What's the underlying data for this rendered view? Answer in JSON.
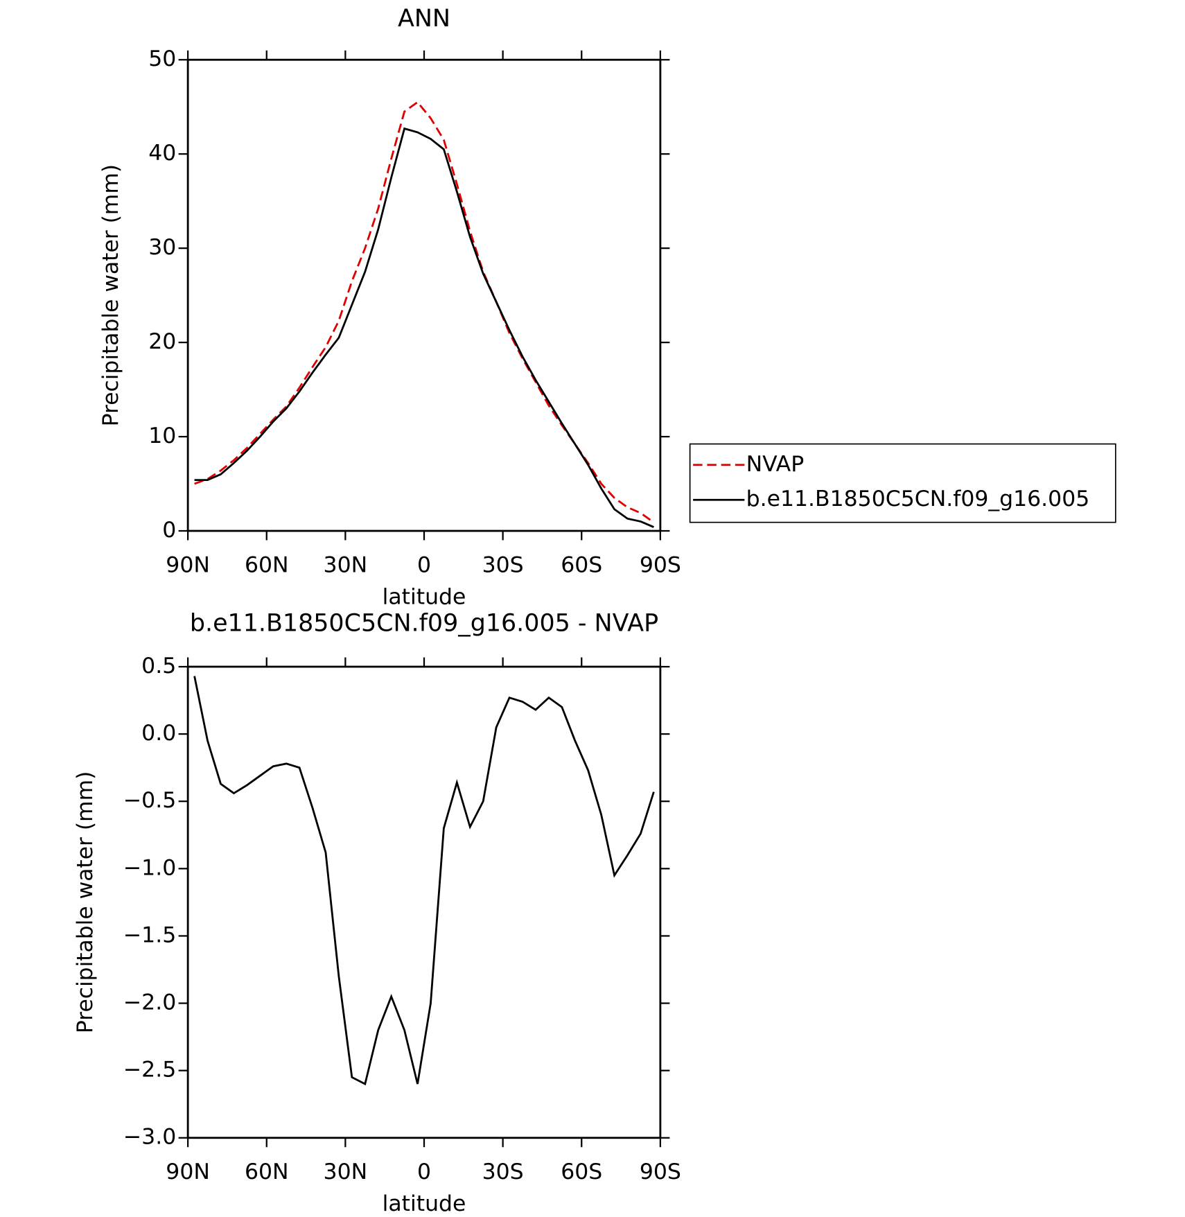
{
  "chart_data": [
    {
      "type": "line",
      "title": "ANN",
      "x_label": "latitude",
      "y_label": "Precipitable water (mm)",
      "x": [
        87.5,
        82.5,
        77.5,
        72.5,
        67.5,
        62.5,
        57.5,
        52.5,
        47.5,
        42.5,
        37.5,
        32.5,
        27.5,
        22.5,
        17.5,
        12.5,
        7.5,
        2.5,
        -2.5,
        -7.5,
        -12.5,
        -17.5,
        -22.5,
        -27.5,
        -32.5,
        -37.5,
        -42.5,
        -47.5,
        -52.5,
        -57.5,
        -62.5,
        -67.5,
        -72.5,
        -77.5,
        -82.5,
        -87.5
      ],
      "series": [
        {
          "name": "NVAP",
          "color": "#e00000",
          "dashed": true,
          "values": [
            5.0,
            5.5,
            6.4,
            7.5,
            8.8,
            10.3,
            11.8,
            13.2,
            15.2,
            17.4,
            19.5,
            22.3,
            26.5,
            30,
            34.2,
            39.5,
            44.5,
            45.5,
            43.8,
            41.5,
            36.8,
            31.8,
            27.5,
            24.3,
            21,
            18.3,
            15.8,
            13.3,
            11.2,
            9.2,
            7.2,
            5.0,
            3.5,
            2.5,
            1.9,
            0.9
          ]
        },
        {
          "name": "b.e11.B1850C5CN.f09_g16.005",
          "color": "#000000",
          "dashed": false,
          "values": [
            5.4,
            5.4,
            6.0,
            7.2,
            8.5,
            10.0,
            11.6,
            13.0,
            14.8,
            16.8,
            18.7,
            20.5,
            24,
            27.5,
            32,
            37.5,
            42.7,
            42.3,
            41.6,
            40.5,
            36,
            31.2,
            27.3,
            24.3,
            21.3,
            18.5,
            16,
            13.7,
            11.4,
            9.2,
            7.0,
            4.5,
            2.3,
            1.3,
            1.0,
            0.4
          ]
        }
      ],
      "xlim": [
        90,
        -90
      ],
      "xticks": [
        {
          "value": 90,
          "label": "90N"
        },
        {
          "value": 60,
          "label": "60N"
        },
        {
          "value": 30,
          "label": "30N"
        },
        0,
        {
          "value": -30,
          "label": "30S"
        },
        {
          "value": -60,
          "label": "60S"
        },
        {
          "value": -90,
          "label": "90S"
        }
      ],
      "ylim": [
        0,
        50
      ],
      "yticks": [
        0,
        10,
        20,
        30,
        40,
        50
      ],
      "grid": false,
      "legend": "outside-right"
    },
    {
      "type": "line",
      "title": "b.e11.B1850C5CN.f09_g16.005 - NVAP",
      "x_label": "latitude",
      "y_label": "Precipitable water (mm)",
      "x": [
        87.5,
        82.5,
        77.5,
        72.5,
        67.5,
        62.5,
        57.5,
        52.5,
        47.5,
        42.5,
        37.5,
        32.5,
        27.5,
        22.5,
        17.5,
        12.5,
        7.5,
        2.5,
        -2.5,
        -7.5,
        -12.5,
        -17.5,
        -22.5,
        -27.5,
        -32.5,
        -37.5,
        -42.5,
        -47.5,
        -52.5,
        -57.5,
        -62.5,
        -67.5,
        -72.5,
        -77.5,
        -82.5,
        -87.5
      ],
      "series": [
        {
          "color": "#000000",
          "dashed": false,
          "values": [
            0.43,
            -0.05,
            -0.37,
            -0.44,
            -0.38,
            -0.31,
            -0.24,
            -0.22,
            -0.25,
            -0.55,
            -0.88,
            -1.8,
            -2.55,
            -2.6,
            -2.2,
            -1.95,
            -2.2,
            -2.6,
            -2.0,
            -0.7,
            -0.36,
            -0.69,
            -0.5,
            0.05,
            0.27,
            0.24,
            0.18,
            0.27,
            0.2,
            -0.05,
            -0.27,
            -0.6,
            -1.05,
            -0.9,
            -0.74,
            -0.43
          ]
        }
      ],
      "xlim": [
        90,
        -90
      ],
      "xticks": [
        {
          "value": 90,
          "label": "90N"
        },
        {
          "value": 60,
          "label": "60N"
        },
        {
          "value": 30,
          "label": "30N"
        },
        0,
        {
          "value": -30,
          "label": "30S"
        },
        {
          "value": -60,
          "label": "60S"
        },
        {
          "value": -90,
          "label": "90S"
        }
      ],
      "ylim": [
        -3.0,
        0.5
      ],
      "yticks": [
        {
          "value": -3.0,
          "label": "−3.0"
        },
        {
          "value": -2.5,
          "label": "−2.5"
        },
        {
          "value": -2.0,
          "label": "−2.0"
        },
        {
          "value": -1.5,
          "label": "−1.5"
        },
        {
          "value": -1.0,
          "label": "−1.0"
        },
        {
          "value": -0.5,
          "label": "−0.5"
        },
        {
          "value": 0,
          "label": "0.0"
        },
        0.5
      ],
      "grid": false
    }
  ]
}
